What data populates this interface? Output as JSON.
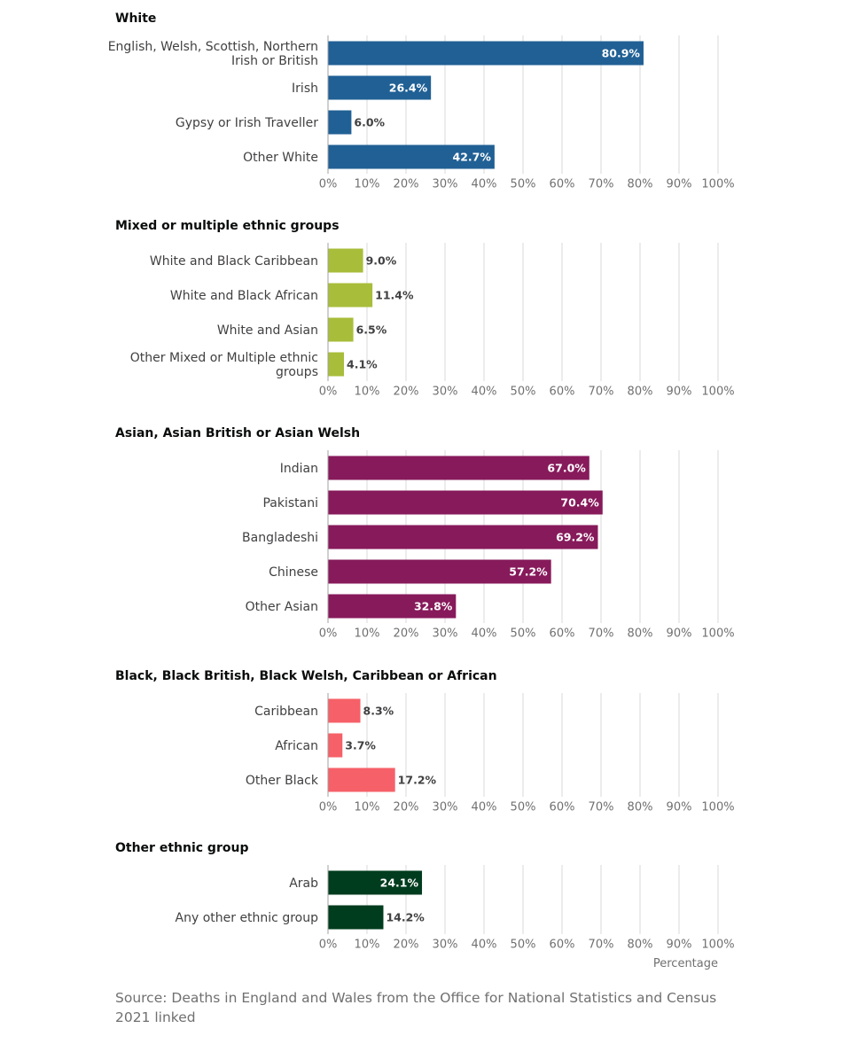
{
  "chart_data": {
    "type": "bar",
    "orientation": "horizontal",
    "xlabel": "Percentage",
    "xlim": [
      0,
      100
    ],
    "ticks": [
      0,
      10,
      20,
      30,
      40,
      50,
      60,
      70,
      80,
      90,
      100
    ],
    "tick_suffix": "%",
    "grid": true,
    "panels": [
      {
        "title": "White",
        "color": "#206095",
        "categories": [
          [
            "English, Welsh, Scottish, Northern",
            "Irish or British"
          ],
          [
            "Irish"
          ],
          [
            "Gypsy or Irish Traveller"
          ],
          [
            "Other White"
          ]
        ],
        "values": [
          80.9,
          26.4,
          6.0,
          42.7
        ]
      },
      {
        "title": "Mixed or multiple ethnic groups",
        "color": "#a8bd3a",
        "categories": [
          [
            "White and Black Caribbean"
          ],
          [
            "White and Black African"
          ],
          [
            "White and Asian"
          ],
          [
            "Other Mixed or Multiple ethnic",
            "groups"
          ]
        ],
        "values": [
          9.0,
          11.4,
          6.5,
          4.1
        ]
      },
      {
        "title": "Asian, Asian British or Asian Welsh",
        "color": "#871a5b",
        "categories": [
          [
            "Indian"
          ],
          [
            "Pakistani"
          ],
          [
            "Bangladeshi"
          ],
          [
            "Chinese"
          ],
          [
            "Other Asian"
          ]
        ],
        "values": [
          67.0,
          70.4,
          69.2,
          57.2,
          32.8
        ]
      },
      {
        "title": "Black, Black British, Black Welsh, Caribbean or African",
        "color": "#f66068",
        "categories": [
          [
            "Caribbean"
          ],
          [
            "African"
          ],
          [
            "Other Black"
          ]
        ],
        "values": [
          8.3,
          3.7,
          17.2
        ]
      },
      {
        "title": "Other ethnic group",
        "color": "#003c1e",
        "categories": [
          [
            "Arab"
          ],
          [
            "Any other ethnic group"
          ]
        ],
        "values": [
          24.1,
          14.2
        ]
      }
    ]
  },
  "source": "Source: Deaths in England and Wales from the Office for National Statistics and Census 2021 linked"
}
